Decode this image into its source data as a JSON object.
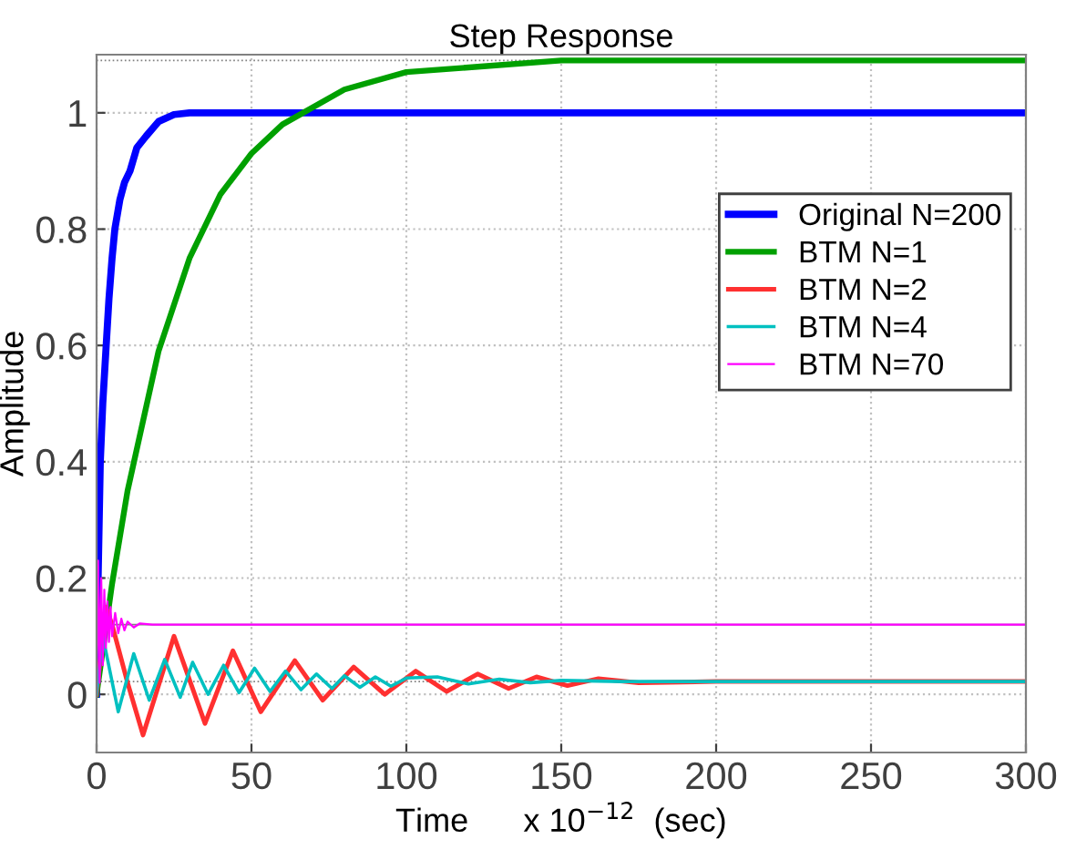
{
  "chart_data": {
    "type": "line",
    "title": "Step Response",
    "xlabel": "Time      x 10$^{−12}$  (sec)",
    "ylabel": "Amplitude",
    "xlim": [
      0,
      300
    ],
    "ylim": [
      -0.1,
      1.1
    ],
    "xticks": [
      0,
      50,
      100,
      150,
      200,
      250,
      300
    ],
    "yticks": [
      0,
      0.2,
      0.4,
      0.6,
      0.8,
      1
    ],
    "grid": true,
    "legend": "right",
    "marker": "none",
    "line_style": "solid",
    "ref_lines": [
      {
        "axis": "y",
        "value": 1.09,
        "color": "#808080",
        "line_style": "dotted"
      },
      {
        "axis": "y",
        "value": 0.12,
        "color": "#808080",
        "line_style": "solid"
      },
      {
        "axis": "y",
        "value": 0.022,
        "color": "#808080",
        "line_style": "dotted"
      }
    ],
    "series": [
      {
        "name": "Original N=200",
        "color": "#0000ff",
        "x": [
          0,
          0.5,
          1.2,
          2,
          3.1,
          4,
          5,
          5.9,
          7.5,
          9,
          10.8,
          13,
          16,
          20,
          25,
          30,
          300
        ],
        "values": [
          0,
          0.2,
          0.4,
          0.5,
          0.6,
          0.68,
          0.75,
          0.8,
          0.85,
          0.88,
          0.9,
          0.94,
          0.96,
          0.985,
          0.997,
          1,
          1
        ]
      },
      {
        "name": "BTM N=1",
        "color": "#00a000",
        "x": [
          0,
          5,
          10,
          20,
          30,
          40,
          50,
          60,
          80,
          100,
          125,
          150,
          200,
          300
        ],
        "values": [
          0,
          0.19,
          0.35,
          0.59,
          0.75,
          0.86,
          0.93,
          0.98,
          1.04,
          1.07,
          1.08,
          1.09,
          1.09,
          1.09
        ]
      },
      {
        "name": "BTM N=2",
        "color": "#ff3030",
        "x": [
          0,
          3,
          5,
          10,
          15,
          25,
          35,
          44,
          53,
          64,
          73,
          83,
          93,
          103,
          113,
          123,
          133,
          142,
          152,
          162,
          175,
          200,
          300
        ],
        "values": [
          0,
          0.15,
          0.12,
          0.02,
          -0.07,
          0.1,
          -0.05,
          0.075,
          -0.03,
          0.058,
          -0.01,
          0.047,
          0,
          0.04,
          0.005,
          0.035,
          0.01,
          0.03,
          0.015,
          0.027,
          0.02,
          0.022,
          0.022
        ]
      },
      {
        "name": "BTM N=4",
        "color": "#00c0c0",
        "x": [
          0,
          2,
          7,
          12,
          17,
          22,
          27,
          31,
          36,
          41,
          46,
          51,
          56,
          61,
          66,
          71,
          76,
          80,
          85,
          90,
          95,
          100,
          110,
          120,
          130,
          140,
          150,
          170,
          300
        ],
        "values": [
          0,
          0.1,
          -0.03,
          0.07,
          -0.01,
          0.06,
          -0.005,
          0.055,
          0,
          0.05,
          0.003,
          0.045,
          0.005,
          0.04,
          0.008,
          0.035,
          0.01,
          0.032,
          0.012,
          0.03,
          0.014,
          0.028,
          0.03,
          0.018,
          0.026,
          0.02,
          0.024,
          0.022,
          0.022
        ]
      },
      {
        "name": "BTM N=70",
        "color": "#ff00ff",
        "x": [
          0,
          0.5,
          1,
          1.5,
          2,
          2.5,
          3,
          3.5,
          4,
          4.5,
          5,
          6,
          7,
          8,
          9,
          10,
          12,
          14,
          18,
          300
        ],
        "values": [
          0,
          0.23,
          0.02,
          0.2,
          0.05,
          0.18,
          0.08,
          0.16,
          0.09,
          0.15,
          0.1,
          0.14,
          0.105,
          0.13,
          0.11,
          0.125,
          0.115,
          0.122,
          0.12,
          0.12
        ]
      }
    ]
  }
}
